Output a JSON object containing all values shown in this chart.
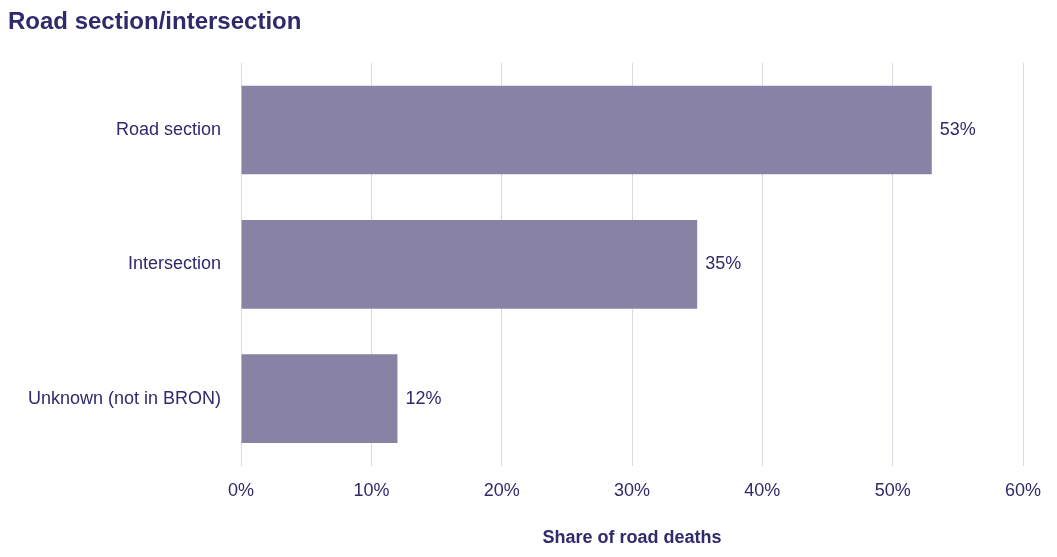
{
  "chart_data": {
    "type": "bar",
    "orientation": "horizontal",
    "title": "Road section/intersection",
    "xlabel": "Share of road deaths",
    "categories": [
      "Road section",
      "Intersection",
      "Unknown (not in BRON)"
    ],
    "values": [
      53,
      35,
      12
    ],
    "value_labels": [
      "53%",
      "35%",
      "12%"
    ],
    "color": "#8883a4",
    "xlim": [
      0,
      60
    ],
    "xticks": [
      {
        "value": 0,
        "label": "0%"
      },
      {
        "value": 10,
        "label": "10%"
      },
      {
        "value": 20,
        "label": "20%"
      },
      {
        "value": 30,
        "label": "30%"
      },
      {
        "value": 40,
        "label": "40%"
      },
      {
        "value": 50,
        "label": "50%"
      },
      {
        "value": 60,
        "label": "60%"
      }
    ],
    "grid": "x",
    "legend": false
  }
}
